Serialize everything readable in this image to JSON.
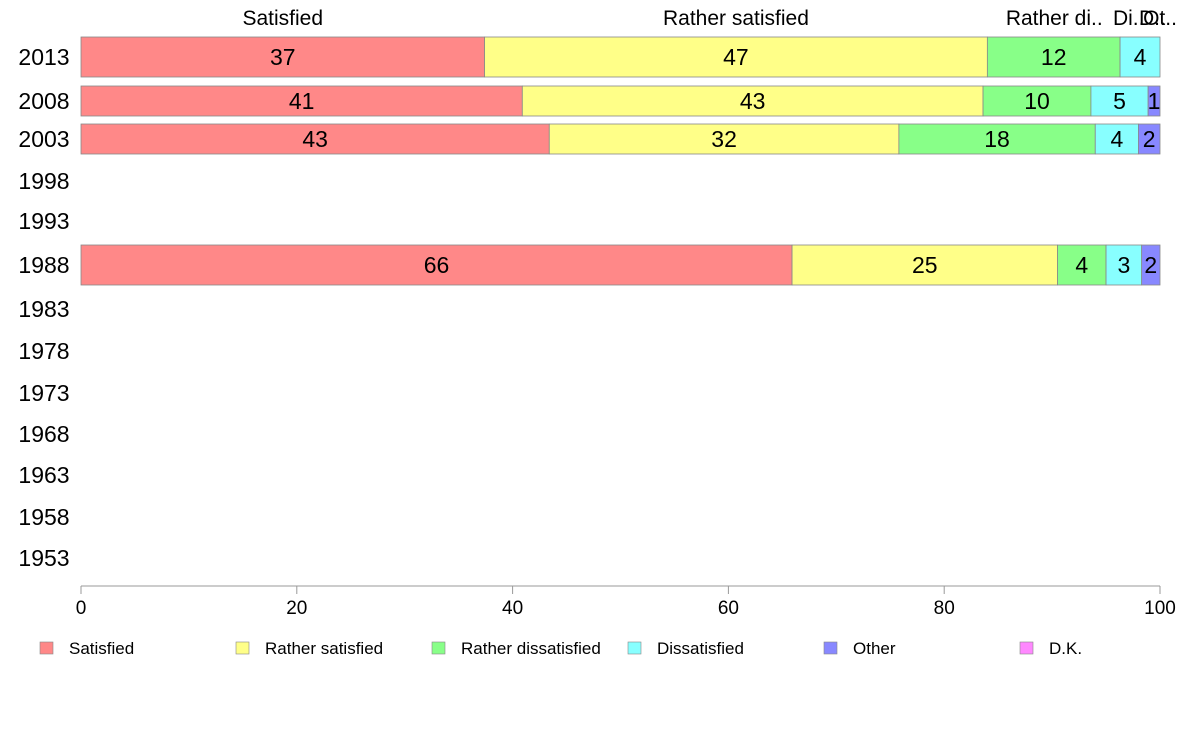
{
  "chart_data": {
    "type": "bar",
    "orientation": "horizontal",
    "stacked": true,
    "categories": [
      "2013",
      "2008",
      "2003",
      "1998",
      "1993",
      "1988",
      "1983",
      "1978",
      "1973",
      "1968",
      "1963",
      "1958",
      "1953"
    ],
    "series": [
      {
        "name": "Satisfied",
        "color": "#ff8888",
        "values": [
          37.4,
          40.9,
          43.4,
          null,
          null,
          65.9,
          null,
          null,
          null,
          null,
          null,
          null,
          null
        ],
        "labels": [
          "37",
          "41",
          "43",
          "",
          "",
          "66",
          "",
          "",
          "",
          "",
          "",
          "",
          ""
        ]
      },
      {
        "name": "Rather satisfied",
        "color": "#ffff88",
        "values": [
          46.6,
          42.7,
          32.4,
          null,
          null,
          24.6,
          null,
          null,
          null,
          null,
          null,
          null,
          null
        ],
        "labels": [
          "47",
          "43",
          "32",
          "",
          "",
          "25",
          "",
          "",
          "",
          "",
          "",
          "",
          ""
        ]
      },
      {
        "name": "Rather dissatisfied",
        "color": "#88ff88",
        "values": [
          12.3,
          10.0,
          18.2,
          null,
          null,
          4.5,
          null,
          null,
          null,
          null,
          null,
          null,
          null
        ],
        "labels": [
          "12",
          "10",
          "18",
          "",
          "",
          "4",
          "",
          "",
          "",
          "",
          "",
          "",
          ""
        ]
      },
      {
        "name": "Dissatisfied",
        "color": "#88ffff",
        "values": [
          3.7,
          5.3,
          4.0,
          null,
          null,
          3.3,
          null,
          null,
          null,
          null,
          null,
          null,
          null
        ],
        "labels": [
          "4",
          "5",
          "4",
          "",
          "",
          "3",
          "",
          "",
          "",
          "",
          "",
          "",
          ""
        ]
      },
      {
        "name": "Other",
        "color": "#8888ff",
        "values": [
          0.0,
          1.1,
          2.0,
          null,
          null,
          1.7,
          null,
          null,
          null,
          null,
          null,
          null,
          null
        ],
        "labels": [
          "",
          "1",
          "2",
          "",
          "",
          "2",
          "",
          "",
          "",
          "",
          "",
          "",
          ""
        ]
      },
      {
        "name": "D.K.",
        "color": "#ff88ff",
        "values": [
          0.0,
          0.0,
          0.0,
          null,
          null,
          0.0,
          null,
          null,
          null,
          null,
          null,
          null,
          null
        ],
        "labels": [
          "",
          "",
          "",
          "",
          "",
          "",
          "",
          "",
          "",
          "",
          "",
          "",
          ""
        ]
      }
    ],
    "top_labels": [
      {
        "text": "Satisfied",
        "at": 18.7
      },
      {
        "text": "Rather satisfied",
        "at": 60.7
      },
      {
        "text": "Rather di..",
        "at": 90.2
      },
      {
        "text": "Di..",
        "at": 97.1
      },
      {
        "text": "D..",
        "at": 99.3
      },
      {
        "text": "Ot..",
        "at": 100.0
      }
    ],
    "xlim": [
      0,
      100
    ],
    "xticks": [
      0,
      20,
      40,
      60,
      80,
      100
    ],
    "xlabel": "",
    "ylabel": "",
    "title": "",
    "grid": false,
    "legend_position": "bottom"
  }
}
